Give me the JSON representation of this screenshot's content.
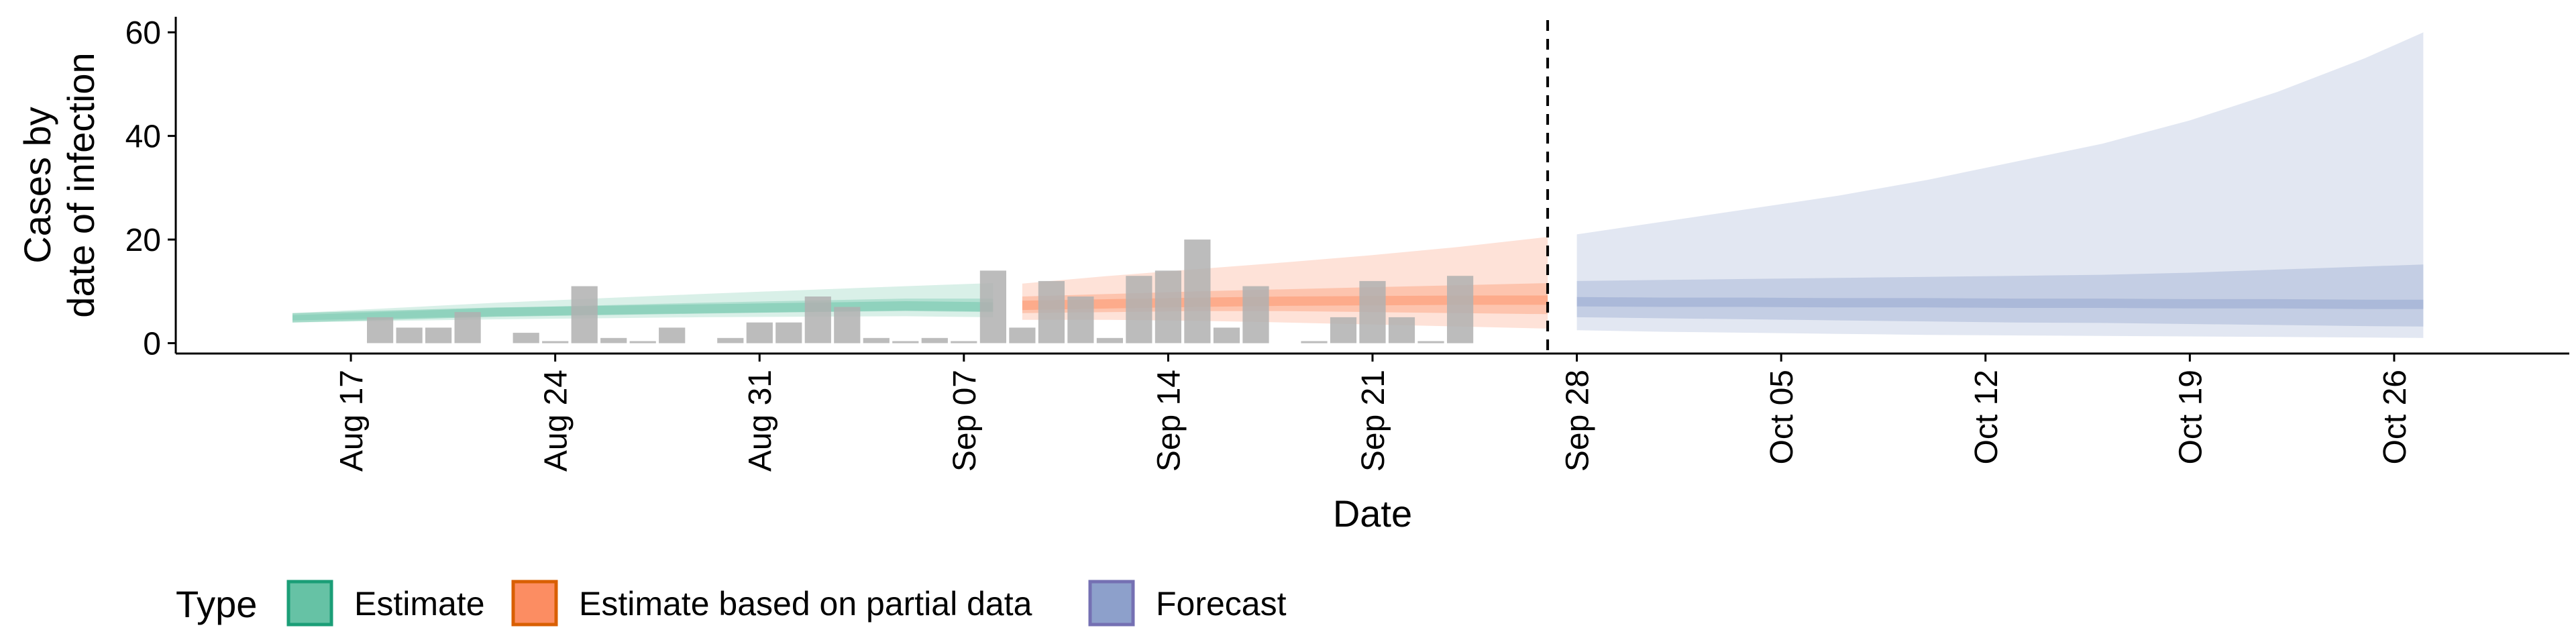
{
  "chart_data": {
    "type": "area",
    "xlabel": "Date",
    "ylabel_lines": [
      "Cases by",
      "date of infection"
    ],
    "xlim": [
      "2020-08-11",
      "2020-11-01"
    ],
    "ylim": [
      -2,
      63
    ],
    "x_ticks": [
      {
        "date": "2020-08-17",
        "label": "Aug 17"
      },
      {
        "date": "2020-08-24",
        "label": "Aug 24"
      },
      {
        "date": "2020-08-31",
        "label": "Aug 31"
      },
      {
        "date": "2020-09-07",
        "label": "Sep 07"
      },
      {
        "date": "2020-09-14",
        "label": "Sep 14"
      },
      {
        "date": "2020-09-21",
        "label": "Sep 21"
      },
      {
        "date": "2020-09-28",
        "label": "Sep 28"
      },
      {
        "date": "2020-10-05",
        "label": "Oct 05"
      },
      {
        "date": "2020-10-12",
        "label": "Oct 12"
      },
      {
        "date": "2020-10-19",
        "label": "Oct 19"
      },
      {
        "date": "2020-10-26",
        "label": "Oct 26"
      }
    ],
    "y_ticks": [
      0,
      20,
      40,
      60
    ],
    "forecast_date": "2020-09-27",
    "grid": false,
    "legend_position": "bottom",
    "legend": {
      "title": "Type",
      "items": [
        {
          "label": "Estimate",
          "fill": "#66c2a5",
          "stroke": "#1b9e77"
        },
        {
          "label": "Estimate based on partial data",
          "fill": "#fc8d62",
          "stroke": "#d95f02"
        },
        {
          "label": "Forecast",
          "fill": "#8da0cb",
          "stroke": "#7570b3"
        }
      ]
    },
    "observed_cases": {
      "color": "#b0b0b0",
      "points": [
        {
          "date": "2020-08-18",
          "value": 5
        },
        {
          "date": "2020-08-19",
          "value": 3
        },
        {
          "date": "2020-08-20",
          "value": 3
        },
        {
          "date": "2020-08-21",
          "value": 6
        },
        {
          "date": "2020-08-23",
          "value": 2
        },
        {
          "date": "2020-08-24",
          "value": 0
        },
        {
          "date": "2020-08-25",
          "value": 11
        },
        {
          "date": "2020-08-26",
          "value": 1
        },
        {
          "date": "2020-08-27",
          "value": 0
        },
        {
          "date": "2020-08-28",
          "value": 3
        },
        {
          "date": "2020-08-30",
          "value": 1
        },
        {
          "date": "2020-08-31",
          "value": 4
        },
        {
          "date": "2020-09-01",
          "value": 4
        },
        {
          "date": "2020-09-02",
          "value": 9
        },
        {
          "date": "2020-09-03",
          "value": 7
        },
        {
          "date": "2020-09-04",
          "value": 1
        },
        {
          "date": "2020-09-05",
          "value": 0
        },
        {
          "date": "2020-09-06",
          "value": 1
        },
        {
          "date": "2020-09-07",
          "value": 0
        },
        {
          "date": "2020-09-08",
          "value": 14
        },
        {
          "date": "2020-09-09",
          "value": 3
        },
        {
          "date": "2020-09-10",
          "value": 12
        },
        {
          "date": "2020-09-11",
          "value": 9
        },
        {
          "date": "2020-09-12",
          "value": 1
        },
        {
          "date": "2020-09-13",
          "value": 13
        },
        {
          "date": "2020-09-14",
          "value": 14
        },
        {
          "date": "2020-09-15",
          "value": 20
        },
        {
          "date": "2020-09-16",
          "value": 3
        },
        {
          "date": "2020-09-17",
          "value": 11
        },
        {
          "date": "2020-09-19",
          "value": 0
        },
        {
          "date": "2020-09-20",
          "value": 5
        },
        {
          "date": "2020-09-21",
          "value": 12
        },
        {
          "date": "2020-09-22",
          "value": 5
        },
        {
          "date": "2020-09-23",
          "value": 0
        },
        {
          "date": "2020-09-24",
          "value": 13
        }
      ]
    },
    "series": [
      {
        "name": "Estimate",
        "color": "#66c2a5",
        "x": [
          "2020-08-15",
          "2020-08-22",
          "2020-08-29",
          "2020-09-05",
          "2020-09-08"
        ],
        "outer_lower": [
          4.0,
          4.6,
          5.0,
          5.2,
          5.0
        ],
        "outer_upper": [
          5.8,
          7.8,
          9.5,
          11.0,
          11.6
        ],
        "inner_lower": [
          4.4,
          5.2,
          5.8,
          6.2,
          6.0
        ],
        "inner_upper": [
          5.4,
          6.8,
          7.8,
          8.6,
          8.6
        ],
        "median": [
          4.9,
          6.0,
          6.6,
          7.2,
          7.0
        ]
      },
      {
        "name": "Estimate based on partial data",
        "color": "#fc8d62",
        "x": [
          "2020-09-09",
          "2020-09-12",
          "2020-09-15",
          "2020-09-18",
          "2020-09-21",
          "2020-09-24",
          "2020-09-27"
        ],
        "outer_lower": [
          4.5,
          4.5,
          4.3,
          4.0,
          3.6,
          3.2,
          2.8
        ],
        "outer_upper": [
          11.5,
          13.0,
          14.3,
          15.6,
          17.0,
          18.6,
          20.5
        ],
        "inner_lower": [
          5.8,
          6.0,
          6.2,
          6.2,
          6.0,
          5.8,
          5.6
        ],
        "inner_upper": [
          9.0,
          9.5,
          10.0,
          10.4,
          10.8,
          11.2,
          11.6
        ],
        "median": [
          7.3,
          7.6,
          7.9,
          8.1,
          8.2,
          8.3,
          8.3
        ]
      },
      {
        "name": "Forecast",
        "color": "#8da0cb",
        "x": [
          "2020-09-28",
          "2020-10-01",
          "2020-10-04",
          "2020-10-07",
          "2020-10-10",
          "2020-10-13",
          "2020-10-16",
          "2020-10-19",
          "2020-10-22",
          "2020-10-25",
          "2020-10-27"
        ],
        "outer_lower": [
          2.5,
          2.2,
          2.0,
          1.8,
          1.6,
          1.5,
          1.4,
          1.3,
          1.2,
          1.1,
          1.0
        ],
        "outer_upper": [
          21.0,
          23.5,
          26.0,
          28.5,
          31.5,
          35.0,
          38.5,
          43.0,
          48.5,
          55.0,
          60.0
        ],
        "inner_lower": [
          5.0,
          4.8,
          4.6,
          4.4,
          4.2,
          4.0,
          3.9,
          3.7,
          3.5,
          3.3,
          3.2
        ],
        "inner_upper": [
          12.0,
          12.2,
          12.4,
          12.6,
          12.8,
          13.0,
          13.2,
          13.6,
          14.2,
          14.8,
          15.2
        ],
        "median": [
          8.0,
          7.9,
          7.9,
          7.8,
          7.8,
          7.7,
          7.7,
          7.6,
          7.6,
          7.5,
          7.5
        ]
      }
    ]
  }
}
